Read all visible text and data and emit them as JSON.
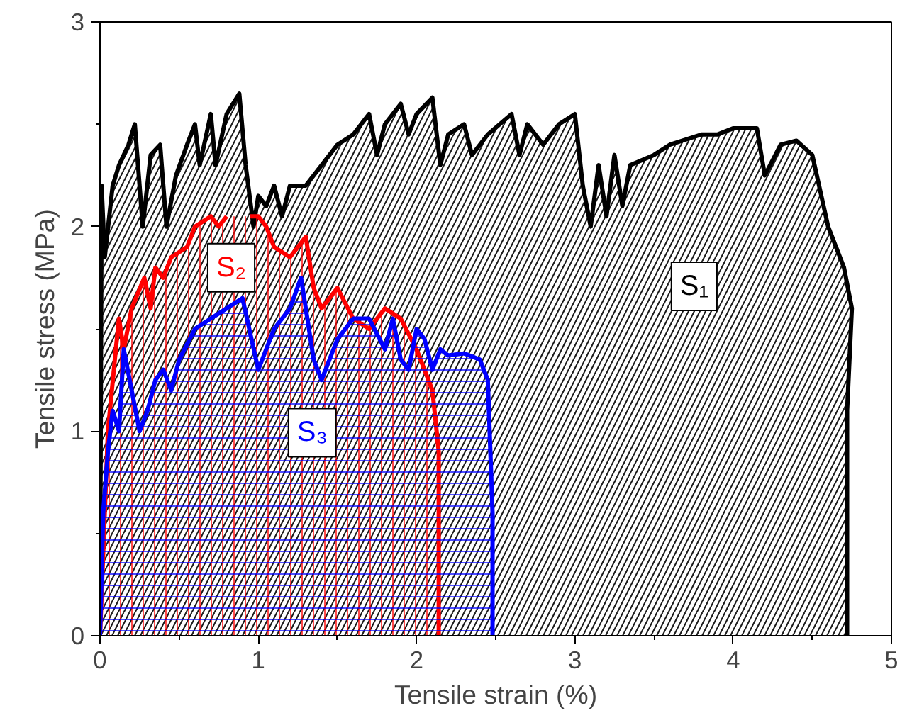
{
  "chart_data": {
    "type": "area",
    "xlabel": "Tensile strain (%)",
    "ylabel": "Tensile stress (MPa)",
    "xlim": [
      0,
      5
    ],
    "xticks": [
      0,
      1,
      2,
      3,
      4,
      5
    ],
    "ylim": [
      0,
      3
    ],
    "yticks": [
      0,
      1,
      2,
      3
    ],
    "grid": false,
    "series": [
      {
        "name": "S₁",
        "color": "#000000",
        "x": [
          0,
          0.01,
          0.03,
          0.08,
          0.12,
          0.18,
          0.22,
          0.27,
          0.32,
          0.38,
          0.42,
          0.48,
          0.55,
          0.6,
          0.63,
          0.7,
          0.73,
          0.8,
          0.88,
          0.92,
          0.97,
          1.0,
          1.05,
          1.1,
          1.15,
          1.2,
          1.3,
          1.4,
          1.5,
          1.6,
          1.7,
          1.75,
          1.8,
          1.9,
          1.95,
          2.0,
          2.1,
          2.15,
          2.2,
          2.3,
          2.35,
          2.45,
          2.6,
          2.65,
          2.7,
          2.8,
          2.9,
          3.0,
          3.05,
          3.1,
          3.15,
          3.2,
          3.25,
          3.3,
          3.35,
          3.5,
          3.6,
          3.8,
          3.9,
          4.0,
          4.15,
          4.2,
          4.3,
          4.4,
          4.5,
          4.6,
          4.7,
          4.75,
          4.72,
          4.72
        ],
        "values": [
          0,
          2.2,
          1.85,
          2.2,
          2.3,
          2.4,
          2.5,
          2.0,
          2.35,
          2.4,
          2.0,
          2.25,
          2.4,
          2.5,
          2.3,
          2.55,
          2.3,
          2.55,
          2.65,
          2.3,
          2.0,
          2.15,
          2.1,
          2.2,
          2.05,
          2.2,
          2.2,
          2.3,
          2.4,
          2.45,
          2.55,
          2.35,
          2.5,
          2.6,
          2.45,
          2.55,
          2.63,
          2.3,
          2.45,
          2.5,
          2.35,
          2.45,
          2.55,
          2.35,
          2.5,
          2.4,
          2.5,
          2.55,
          2.2,
          2.0,
          2.3,
          2.05,
          2.35,
          2.1,
          2.3,
          2.35,
          2.4,
          2.45,
          2.45,
          2.48,
          2.48,
          2.25,
          2.4,
          2.42,
          2.35,
          2.0,
          1.8,
          1.6,
          1.1,
          0
        ]
      },
      {
        "name": "S₂",
        "color": "#ff0000",
        "x": [
          0,
          0.05,
          0.1,
          0.12,
          0.15,
          0.2,
          0.28,
          0.32,
          0.35,
          0.4,
          0.45,
          0.55,
          0.6,
          0.7,
          0.75,
          0.8,
          0.85,
          0.9,
          0.95,
          1.0,
          1.05,
          1.1,
          1.2,
          1.3,
          1.35,
          1.4,
          1.5,
          1.6,
          1.7,
          1.8,
          1.9,
          2.0,
          2.1,
          2.14,
          2.14
        ],
        "values": [
          0,
          1.0,
          1.4,
          1.55,
          1.4,
          1.6,
          1.75,
          1.6,
          1.8,
          1.75,
          1.85,
          1.9,
          2.0,
          2.05,
          2.0,
          2.05,
          null,
          null,
          2.05,
          2.05,
          2.0,
          1.9,
          1.85,
          1.95,
          1.7,
          1.6,
          1.7,
          1.55,
          1.5,
          1.6,
          1.55,
          1.4,
          1.2,
          0.9,
          0
        ]
      },
      {
        "name": "S₃",
        "color": "#0000ff",
        "x": [
          0,
          0.02,
          0.05,
          0.08,
          0.12,
          0.15,
          0.2,
          0.25,
          0.3,
          0.35,
          0.4,
          0.45,
          0.5,
          0.6,
          0.7,
          0.8,
          0.9,
          1.0,
          1.05,
          1.1,
          1.2,
          1.27,
          1.35,
          1.4,
          1.5,
          1.6,
          1.7,
          1.8,
          1.85,
          1.9,
          1.95,
          2.0,
          2.05,
          2.1,
          2.15,
          2.2,
          2.3,
          2.4,
          2.45,
          2.48,
          2.48
        ],
        "values": [
          0,
          0.6,
          0.9,
          1.1,
          1.0,
          1.4,
          1.2,
          1.0,
          1.1,
          1.25,
          1.3,
          1.2,
          1.35,
          1.5,
          1.55,
          1.6,
          1.65,
          1.3,
          1.4,
          1.5,
          1.6,
          1.75,
          1.35,
          1.25,
          1.45,
          1.55,
          1.55,
          1.4,
          1.55,
          1.35,
          1.3,
          1.5,
          1.45,
          1.3,
          1.4,
          1.37,
          1.38,
          1.35,
          1.25,
          0.6,
          0
        ]
      }
    ]
  }
}
